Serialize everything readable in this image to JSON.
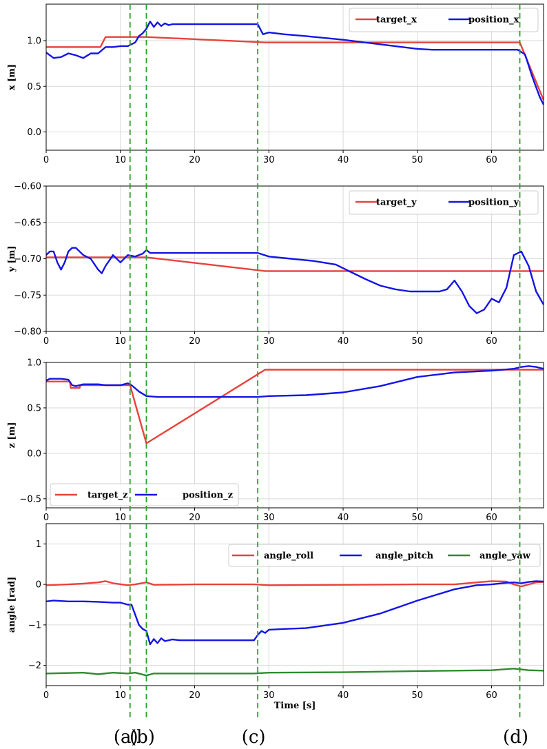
{
  "chart_data": [
    {
      "type": "line",
      "ylabel": "x [m]",
      "xlim": [
        0,
        67
      ],
      "ylim": [
        -0.2,
        1.4
      ],
      "xticks": [
        0,
        10,
        20,
        30,
        40,
        50,
        60
      ],
      "yticks": [
        0.0,
        0.5,
        1.0
      ],
      "ytick_labels": [
        "0.0",
        "0.5",
        "1.0"
      ],
      "legend_position": "top-right",
      "series": [
        {
          "name": "target_x",
          "color": "#e8423b",
          "x": [
            0,
            7.3,
            8,
            11.3,
            13.5,
            29.5,
            63.8,
            67
          ],
          "y": [
            0.93,
            0.93,
            1.04,
            1.04,
            1.04,
            0.98,
            0.98,
            0.35
          ]
        },
        {
          "name": "position_x",
          "color": "#1414e6",
          "x": [
            0,
            1,
            2,
            3,
            4,
            5,
            6,
            7,
            8,
            9,
            10,
            11,
            12,
            12.5,
            13,
            13.5,
            14,
            14.5,
            15,
            15.5,
            16,
            16.5,
            17,
            18,
            20,
            25,
            28.5,
            29.2,
            30,
            32,
            35,
            40,
            45,
            48,
            50,
            52,
            55,
            60,
            63.5,
            64.5,
            65.5,
            66.5,
            67
          ],
          "y": [
            0.87,
            0.81,
            0.82,
            0.86,
            0.84,
            0.81,
            0.86,
            0.86,
            0.93,
            0.93,
            0.94,
            0.94,
            0.98,
            1.05,
            1.08,
            1.13,
            1.21,
            1.15,
            1.2,
            1.16,
            1.19,
            1.17,
            1.18,
            1.18,
            1.18,
            1.18,
            1.18,
            1.07,
            1.09,
            1.07,
            1.05,
            1.01,
            0.96,
            0.93,
            0.91,
            0.9,
            0.9,
            0.9,
            0.9,
            0.85,
            0.6,
            0.38,
            0.3
          ]
        }
      ]
    },
    {
      "type": "line",
      "ylabel": "y [m]",
      "xlim": [
        0,
        67
      ],
      "ylim": [
        -0.8,
        -0.6
      ],
      "xticks": [
        0,
        10,
        20,
        30,
        40,
        50,
        60
      ],
      "yticks": [
        -0.8,
        -0.75,
        -0.7,
        -0.65,
        -0.6
      ],
      "ytick_labels": [
        "−0.80",
        "−0.75",
        "−0.70",
        "−0.65",
        "−0.60"
      ],
      "legend_position": "top-right",
      "series": [
        {
          "name": "target_y",
          "color": "#e8423b",
          "x": [
            0,
            13.5,
            29.5,
            67
          ],
          "y": [
            -0.698,
            -0.698,
            -0.717,
            -0.717
          ]
        },
        {
          "name": "position_y",
          "color": "#1414e6",
          "x": [
            0,
            0.5,
            1,
            1.5,
            2,
            2.5,
            3,
            3.5,
            4,
            5,
            6,
            7,
            7.5,
            8,
            9,
            10,
            11,
            12,
            13,
            13.5,
            14,
            16,
            20,
            25,
            28.5,
            30,
            33,
            36,
            39,
            41,
            43,
            45,
            47,
            49,
            51,
            53,
            54,
            55,
            56,
            57,
            58,
            59,
            60,
            61,
            62,
            63,
            64,
            65,
            66,
            67
          ],
          "y": [
            -0.695,
            -0.69,
            -0.69,
            -0.705,
            -0.715,
            -0.705,
            -0.69,
            -0.685,
            -0.685,
            -0.695,
            -0.7,
            -0.715,
            -0.72,
            -0.71,
            -0.695,
            -0.705,
            -0.695,
            -0.697,
            -0.693,
            -0.688,
            -0.692,
            -0.692,
            -0.692,
            -0.692,
            -0.692,
            -0.697,
            -0.7,
            -0.703,
            -0.708,
            -0.718,
            -0.728,
            -0.737,
            -0.742,
            -0.745,
            -0.745,
            -0.745,
            -0.742,
            -0.73,
            -0.745,
            -0.765,
            -0.775,
            -0.77,
            -0.755,
            -0.76,
            -0.74,
            -0.695,
            -0.69,
            -0.71,
            -0.745,
            -0.763
          ]
        }
      ]
    },
    {
      "type": "line",
      "ylabel": "z [m]",
      "xlim": [
        0,
        67
      ],
      "ylim": [
        -0.6,
        1.0
      ],
      "xticks": [
        0,
        10,
        20,
        30,
        40,
        50,
        60
      ],
      "yticks": [
        -0.5,
        0.0,
        0.5,
        1.0
      ],
      "ytick_labels": [
        "−0.5",
        "0.0",
        "0.5",
        "1.0"
      ],
      "legend_position": "bottom-left",
      "series": [
        {
          "name": "target_z",
          "color": "#e8423b",
          "x": [
            0,
            3.2,
            3.3,
            4.5,
            4.6,
            11.3,
            13.5,
            29.5,
            67
          ],
          "y": [
            0.79,
            0.79,
            0.72,
            0.72,
            0.75,
            0.75,
            0.11,
            0.92,
            0.92
          ]
        },
        {
          "name": "position_z",
          "color": "#1414e6",
          "x": [
            0,
            0.5,
            1,
            2,
            3,
            3.5,
            4,
            5,
            6,
            7,
            8,
            9,
            10,
            11,
            11.5,
            12.5,
            13.5,
            15,
            20,
            25,
            28.5,
            30,
            35,
            40,
            45,
            50,
            55,
            60,
            63,
            64,
            65,
            66,
            67
          ],
          "y": [
            0.8,
            0.82,
            0.82,
            0.82,
            0.81,
            0.75,
            0.74,
            0.76,
            0.76,
            0.76,
            0.75,
            0.75,
            0.75,
            0.77,
            0.75,
            0.68,
            0.63,
            0.62,
            0.62,
            0.62,
            0.62,
            0.63,
            0.64,
            0.67,
            0.74,
            0.84,
            0.89,
            0.91,
            0.93,
            0.95,
            0.96,
            0.95,
            0.93
          ]
        }
      ]
    },
    {
      "type": "line",
      "ylabel": "angle [rad]",
      "xlabel": "Time [s]",
      "xlim": [
        0,
        67
      ],
      "ylim": [
        -2.5,
        1.5
      ],
      "xticks": [
        0,
        10,
        20,
        30,
        40,
        50,
        60
      ],
      "yticks": [
        -2,
        -1,
        0,
        1
      ],
      "ytick_labels": [
        "−2",
        "−1",
        "0",
        "1"
      ],
      "legend_position": "top-right",
      "series": [
        {
          "name": "angle_roll",
          "color": "#e8423b",
          "x": [
            0,
            3,
            5,
            7,
            8,
            9,
            11,
            12,
            13.5,
            14.5,
            20,
            28,
            30,
            40,
            50,
            55,
            58,
            60,
            62,
            63,
            64,
            65,
            66,
            67
          ],
          "y": [
            -0.02,
            0.0,
            0.02,
            0.05,
            0.08,
            0.03,
            -0.02,
            0.0,
            0.05,
            -0.01,
            0.0,
            0.0,
            -0.02,
            -0.01,
            0.0,
            0.0,
            0.05,
            0.08,
            0.07,
            0.0,
            -0.05,
            0.0,
            0.05,
            0.06
          ]
        },
        {
          "name": "angle_pitch",
          "color": "#1414e6",
          "x": [
            0,
            1,
            3,
            5,
            7,
            9,
            10,
            11,
            11.5,
            12,
            12.5,
            13,
            13.5,
            14,
            14.5,
            15,
            15.5,
            16,
            17,
            18,
            20,
            25,
            28,
            28.5,
            29,
            29.5,
            30,
            32,
            35,
            40,
            45,
            50,
            55,
            58,
            60,
            62,
            63,
            64,
            65,
            66,
            67
          ],
          "y": [
            -0.42,
            -0.4,
            -0.42,
            -0.42,
            -0.43,
            -0.45,
            -0.45,
            -0.5,
            -0.5,
            -0.75,
            -1.0,
            -1.1,
            -1.15,
            -1.48,
            -1.35,
            -1.45,
            -1.33,
            -1.4,
            -1.36,
            -1.38,
            -1.38,
            -1.38,
            -1.38,
            -1.25,
            -1.15,
            -1.2,
            -1.12,
            -1.1,
            -1.08,
            -0.95,
            -0.72,
            -0.4,
            -0.12,
            -0.02,
            0.0,
            0.04,
            0.05,
            0.03,
            0.06,
            0.08,
            0.07
          ]
        },
        {
          "name": "angle_yaw",
          "color": "#2e8b2e",
          "x": [
            0,
            5,
            7,
            9,
            11,
            12,
            13.5,
            14.5,
            20,
            28,
            30,
            40,
            50,
            60,
            63,
            64,
            65,
            67
          ],
          "y": [
            -2.2,
            -2.18,
            -2.22,
            -2.18,
            -2.2,
            -2.18,
            -2.25,
            -2.2,
            -2.2,
            -2.2,
            -2.18,
            -2.17,
            -2.14,
            -2.12,
            -2.08,
            -2.1,
            -2.12,
            -2.13
          ]
        }
      ]
    }
  ],
  "event_lines": {
    "color": "#2ca02c",
    "times": [
      11.3,
      13.5,
      28.5,
      63.8
    ],
    "labels": [
      "(a)",
      "(b)",
      "(c)",
      "(d)"
    ]
  }
}
